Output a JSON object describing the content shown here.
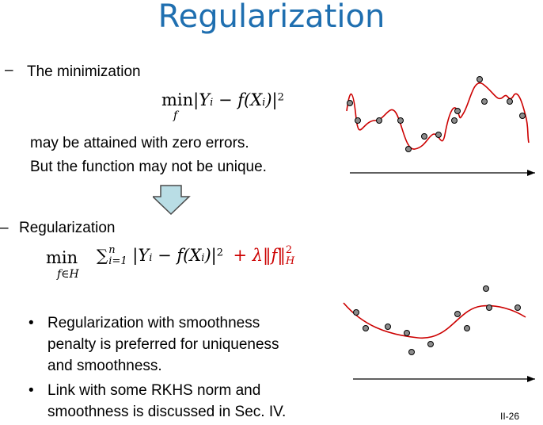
{
  "slide": {
    "title": "Regularization",
    "page_number": "II-26"
  },
  "section1": {
    "dash": "–",
    "heading": "The minimization",
    "formula_min": "min",
    "formula_var": "f",
    "formula_body": "|Y",
    "formula_sub_i": "i",
    "formula_rest": " − f(X",
    "formula_sub_i2": "i",
    "formula_close": ")|",
    "formula_sq": "2",
    "line1": "may be attained with zero errors.",
    "line2": "But the function may not be unique."
  },
  "section2": {
    "dash": "–",
    "heading": "Regularization",
    "formula_min": "min",
    "formula_set": "f∈H",
    "formula_sum": "∑",
    "formula_sum_top": "n",
    "formula_sum_bottom": "i=1",
    "formula_body": " |Y",
    "formula_sub_i": "i",
    "formula_rest": " − f(X",
    "formula_sub_i2": "i",
    "formula_close": ")|",
    "formula_sq": "2",
    "formula_plus": "+ λ‖f‖",
    "formula_norm_sup": "2",
    "formula_norm_sub": "H"
  },
  "bullets": [
    {
      "symbol": "•",
      "line1": "Regularization with smoothness",
      "line2": "penalty is preferred for uniqueness",
      "line3": "and smoothness."
    },
    {
      "symbol": "•",
      "line1": "Link with some RKHS norm and",
      "line2": "smoothness is discussed in Sec. IV."
    }
  ],
  "icons": {
    "down_arrow": "down-arrow-icon",
    "top_plot": "overfit-curve-plot",
    "bottom_plot": "smooth-curve-plot"
  },
  "colors": {
    "title": "#1f6fb0",
    "accent": "#cc0000",
    "arrow_fill": "#b9dde5",
    "point_fill": "#8c8c8c"
  }
}
